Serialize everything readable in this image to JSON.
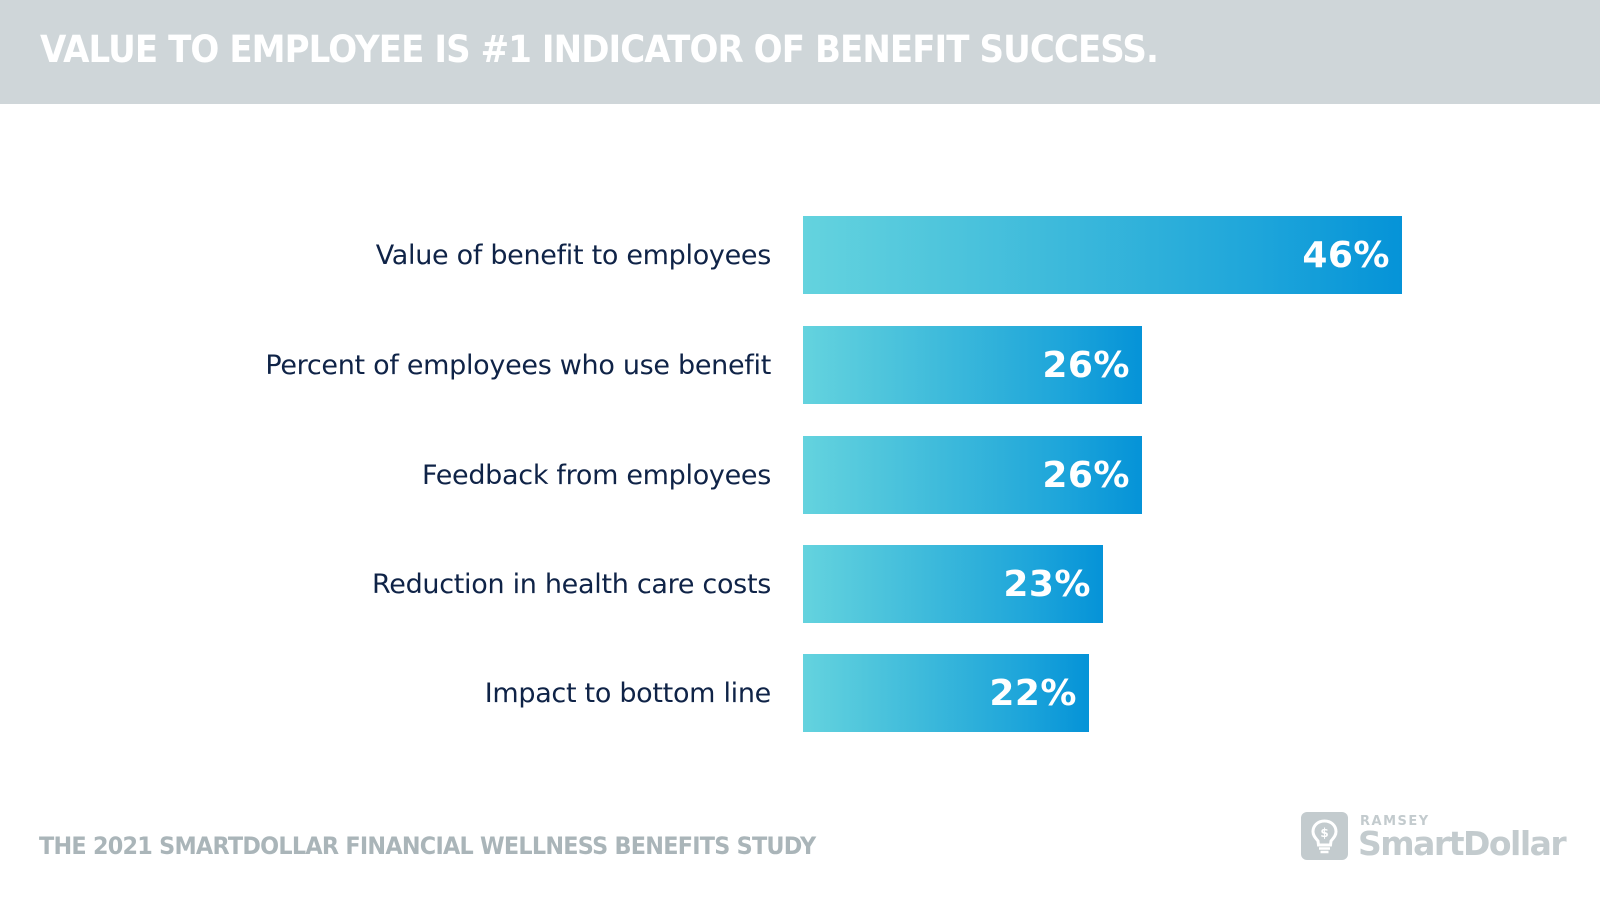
{
  "header": {
    "title": "VALUE TO EMPLOYEE IS #1 INDICATOR OF BENEFIT SUCCESS."
  },
  "chart_data": {
    "type": "bar",
    "orientation": "horizontal",
    "title": "VALUE TO EMPLOYEE IS #1 INDICATOR OF BENEFIT SUCCESS.",
    "categories": [
      "Value of benefit to employees",
      "Percent of employees who use benefit",
      "Feedback from employees",
      "Reduction in health care costs",
      "Impact to bottom line"
    ],
    "values": [
      46,
      26,
      26,
      23,
      22
    ],
    "value_labels": [
      "46%",
      "26%",
      "26%",
      "23%",
      "22%"
    ],
    "unit": "%",
    "xlabel": "",
    "ylabel": "",
    "grid": false,
    "legend": null,
    "bar_gradient": [
      "#64d3de",
      "#0593d8"
    ]
  },
  "bars": [
    {
      "label": "Value of benefit to employees",
      "value": 46,
      "display": "46%"
    },
    {
      "label": "Percent of employees who use benefit",
      "value": 26,
      "display": "26%"
    },
    {
      "label": "Feedback from employees",
      "value": 26,
      "display": "26%"
    },
    {
      "label": "Reduction in health care costs",
      "value": 23,
      "display": "23%"
    },
    {
      "label": "Impact to bottom line",
      "value": 22,
      "display": "22%"
    }
  ],
  "footer": {
    "study_title": "THE 2021 SMARTDOLLAR FINANCIAL WELLNESS BENEFITS STUDY"
  },
  "logo": {
    "top_line": "RAMSEY",
    "brand": "SmartDollar",
    "icon": "lightbulb-dollar-icon"
  },
  "colors": {
    "header_bg": "#cfd6d9",
    "label_text": "#0f2347",
    "footer_text": "#aab5b9",
    "logo": "#c3cbce",
    "bar_start": "#64d3de",
    "bar_end": "#0593d8"
  }
}
